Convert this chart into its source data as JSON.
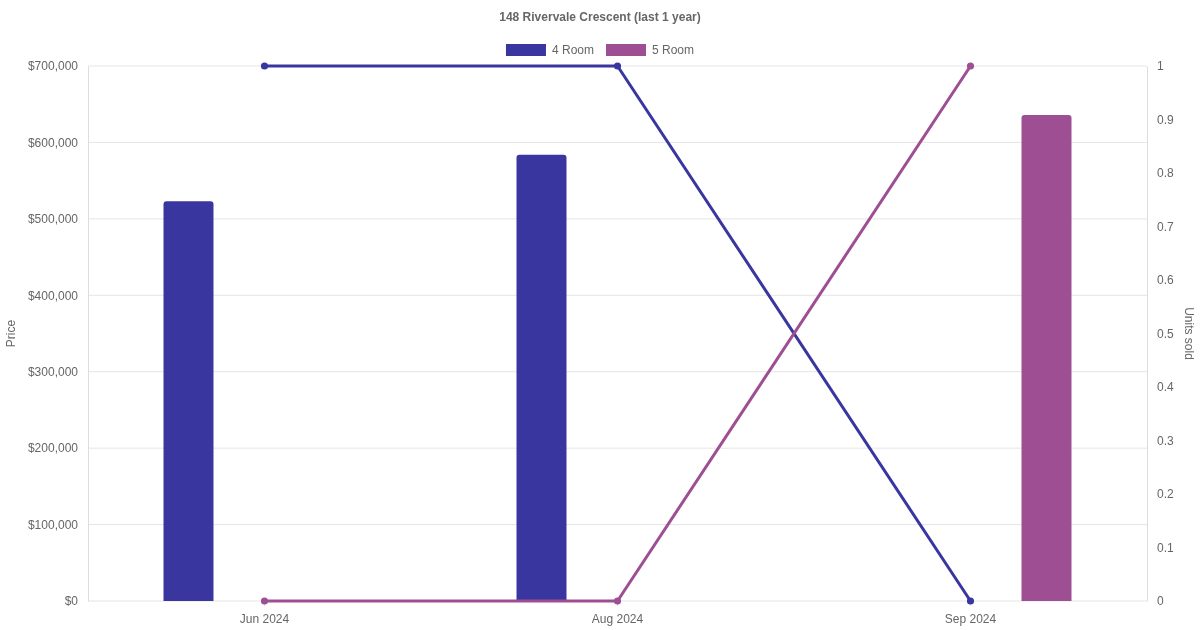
{
  "chart_data": {
    "type": "bar",
    "title": "148 Rivervale Crescent (last 1 year)",
    "ylabel": "Price",
    "y2label": "Units sold",
    "categories": [
      "Jun 2024",
      "Aug 2024",
      "Sep 2024"
    ],
    "series": [
      {
        "name": "4 Room",
        "color": "#3a36a0",
        "values": [
          523000,
          584000,
          null
        ]
      },
      {
        "name": "5 Room",
        "color": "#9e4f93",
        "values": [
          null,
          null,
          636000
        ]
      },
      {
        "type": "line",
        "axis": "y2",
        "color": "#3a36a0",
        "values": [
          1,
          1,
          0
        ]
      },
      {
        "type": "line",
        "axis": "y2",
        "color": "#9e4f93",
        "values": [
          0,
          0,
          1
        ]
      }
    ],
    "ylim": [
      0,
      700000
    ],
    "yticks": [
      {
        "value": 0,
        "label": "$0"
      },
      {
        "value": 100000,
        "label": "$100,000"
      },
      {
        "value": 200000,
        "label": "$200,000"
      },
      {
        "value": 300000,
        "label": "$300,000"
      },
      {
        "value": 400000,
        "label": "$400,000"
      },
      {
        "value": 500000,
        "label": "$500,000"
      },
      {
        "value": 600000,
        "label": "$600,000"
      },
      {
        "value": 700000,
        "label": "$700,000"
      }
    ],
    "y2lim": [
      0,
      1
    ],
    "y2ticks": [
      0,
      0.1,
      0.2,
      0.3,
      0.4,
      0.5,
      0.6,
      0.7,
      0.8,
      0.9,
      1
    ],
    "grid": "y",
    "legend": "top",
    "marker": "circle",
    "line_style": "solid"
  }
}
